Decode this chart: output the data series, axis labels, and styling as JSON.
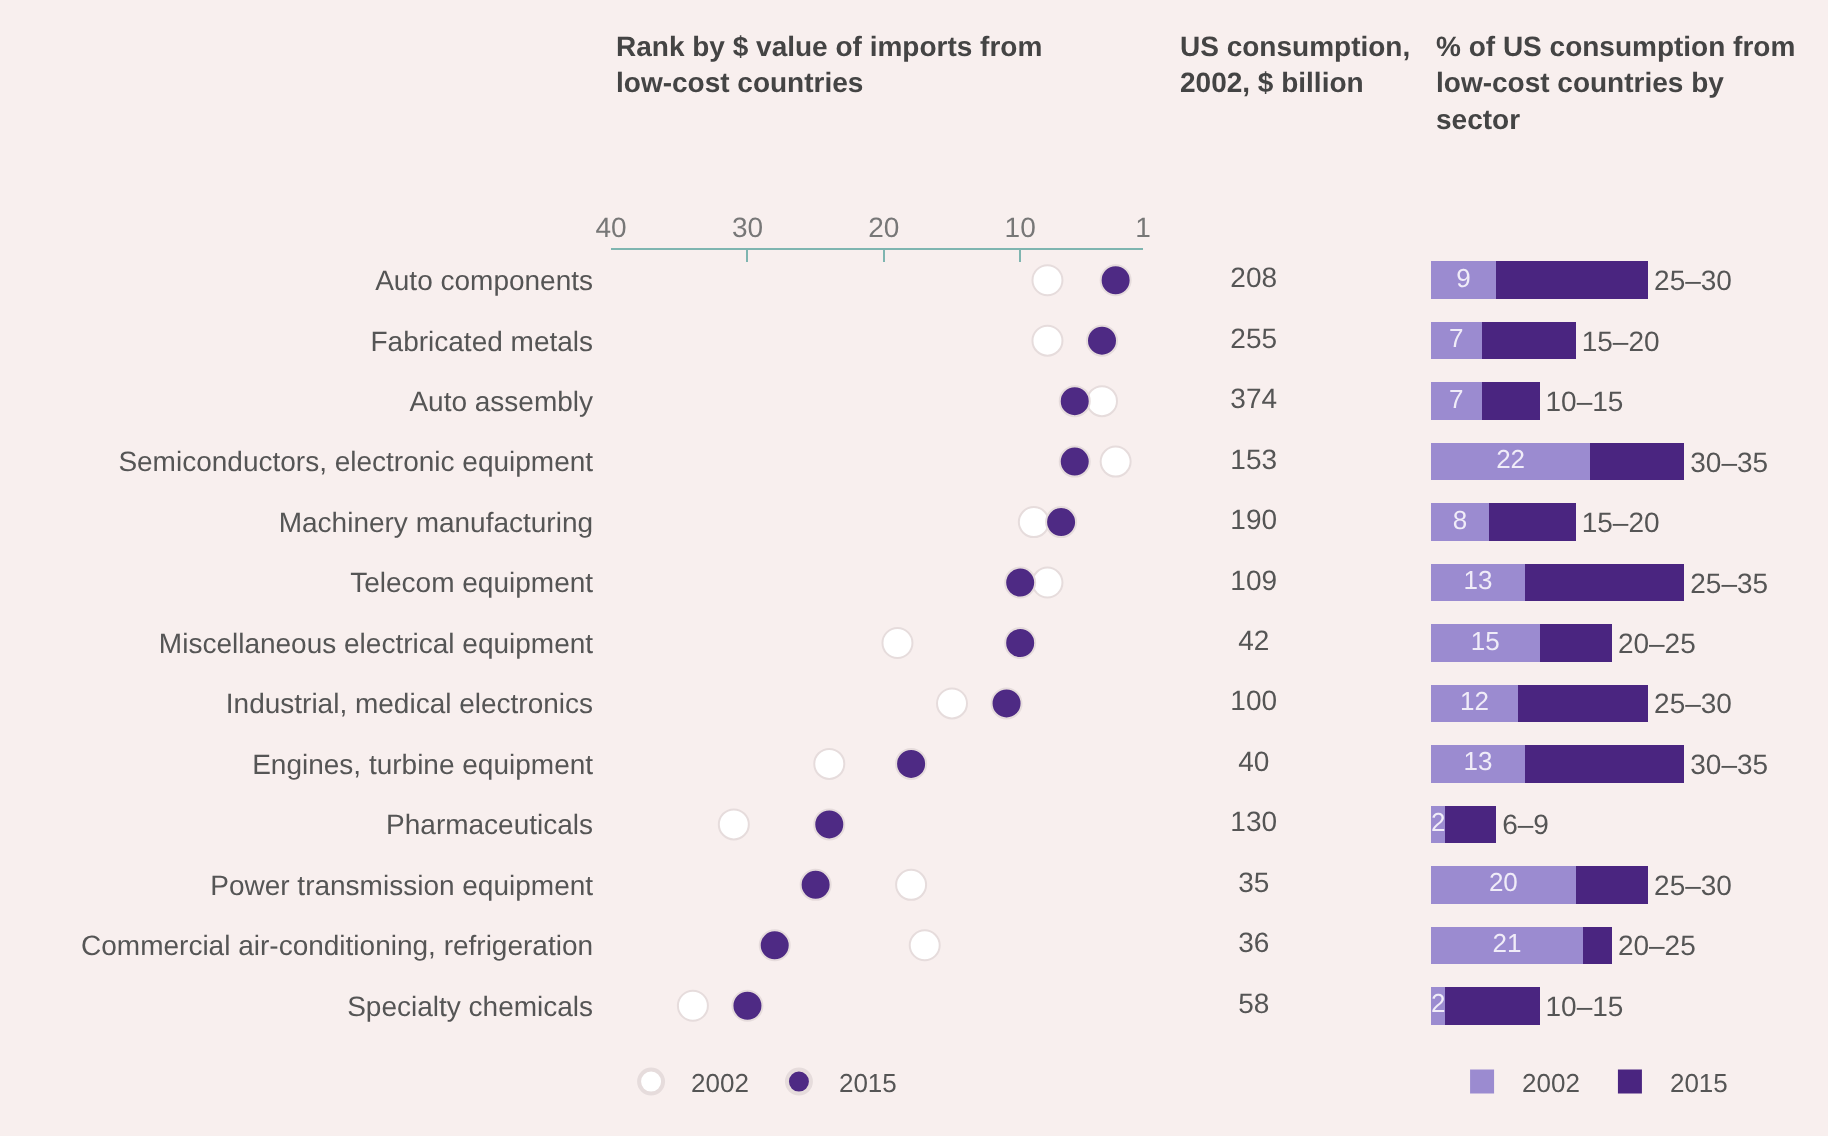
{
  "chart_data": [
    {
      "type": "scatter",
      "title": "Rank by $ value of imports from low-cost countries",
      "categories": [
        "Auto components",
        "Fabricated metals",
        "Auto assembly",
        "Semiconductors, electronic equipment",
        "Machinery manufacturing",
        "Telecom equipment",
        "Miscellaneous electrical equipment",
        "Industrial, medical electronics",
        "Engines, turbine equipment",
        "Pharmaceuticals",
        "Power transmission equipment",
        "Commercial air-conditioning, refrigeration",
        "Specialty chemicals"
      ],
      "series": [
        {
          "name": "2002",
          "color": "#ffffff",
          "values": [
            8,
            8,
            4,
            3,
            9,
            8,
            19,
            15,
            24,
            31,
            18,
            17,
            34
          ]
        },
        {
          "name": "2015",
          "color": "#4e2a84",
          "values": [
            3,
            4,
            6,
            6,
            7,
            10,
            10,
            11,
            18,
            24,
            25,
            28,
            30
          ]
        }
      ],
      "orientation": "horizontal",
      "xlim": [
        40,
        1
      ],
      "xticks": [
        40,
        30,
        20,
        10,
        1
      ],
      "marker": "circle",
      "legend": "bottom"
    },
    {
      "type": "other",
      "title": "US consumption, 2002, $ billion",
      "values": [
        208,
        255,
        374,
        153,
        190,
        109,
        42,
        100,
        40,
        130,
        35,
        36,
        58
      ],
      "data_labels": true
    },
    {
      "type": "bar",
      "orientation": "horizontal",
      "stacked": true,
      "title": "% of US consumption from low-cost countries by sector",
      "series": [
        {
          "name": "2002",
          "color": "#9b8bd0",
          "values": [
            9,
            7,
            7,
            22,
            8,
            13,
            15,
            12,
            13,
            2,
            20,
            21,
            2
          ],
          "value_labels": [
            "9",
            "7",
            "7",
            "22",
            "8",
            "13",
            "15",
            "12",
            "13",
            "2",
            "20",
            "21",
            "2"
          ]
        },
        {
          "name": "2015",
          "color": "#4a2580",
          "values": [
            21,
            13,
            8,
            13,
            12,
            22,
            10,
            18,
            22,
            7,
            10,
            4,
            13
          ],
          "value_labels": [
            "25–30",
            "15–20",
            "10–15",
            "30–35",
            "15–20",
            "25–35",
            "20–25",
            "25–30",
            "30–35",
            "6–9",
            "25–30",
            "20–25",
            "10–15"
          ]
        }
      ],
      "legend": "bottom"
    }
  ]
}
